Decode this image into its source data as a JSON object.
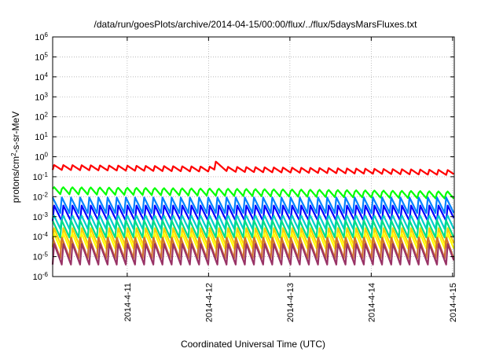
{
  "chart_data": {
    "type": "line",
    "title": "/data/run/goesPlots/archive/2014-04-15/00:00/flux/../flux/5daysMarsFluxes.txt",
    "xlabel": "Coordinated Universal Time (UTC)",
    "ylabel": "protons/cm2-s-sr-MeV",
    "ylabel_base": "protons/cm",
    "ylabel_sup": "2",
    "ylabel_rest": "-s-sr-MeV",
    "yscale": "log",
    "ylim": [
      1e-06,
      1000000.0
    ],
    "xlim": [
      "2014-04-10T02:00",
      "2014-04-15T00:30"
    ],
    "grid": true,
    "y_ticks": [
      {
        "value": 1e-06,
        "base": "10",
        "exp": "-6"
      },
      {
        "value": 1e-05,
        "base": "10",
        "exp": "-5"
      },
      {
        "value": 0.0001,
        "base": "10",
        "exp": "-4"
      },
      {
        "value": 0.001,
        "base": "10",
        "exp": "-3"
      },
      {
        "value": 0.01,
        "base": "10",
        "exp": "-2"
      },
      {
        "value": 0.1,
        "base": "10",
        "exp": "-1"
      },
      {
        "value": 1.0,
        "base": "10",
        "exp": "0"
      },
      {
        "value": 10.0,
        "base": "10",
        "exp": "1"
      },
      {
        "value": 100.0,
        "base": "10",
        "exp": "2"
      },
      {
        "value": 1000.0,
        "base": "10",
        "exp": "3"
      },
      {
        "value": 10000.0,
        "base": "10",
        "exp": "4"
      },
      {
        "value": 100000.0,
        "base": "10",
        "exp": "5"
      },
      {
        "value": 1000000.0,
        "base": "10",
        "exp": "6"
      }
    ],
    "x_ticks": [
      {
        "value": "2014-04-11T00:00",
        "label": "2014-4-11"
      },
      {
        "value": "2014-04-12T00:00",
        "label": "2014-4-12"
      },
      {
        "value": "2014-04-13T00:00",
        "label": "2014-4-13"
      },
      {
        "value": "2014-04-14T00:00",
        "label": "2014-4-14"
      },
      {
        "value": "2014-04-15T00:00",
        "label": "2014-4-15"
      }
    ],
    "series": [
      {
        "color": "#ff0000",
        "period_hours": 2.7,
        "peak": 0.4,
        "trough": 0.22,
        "events": [
          {
            "at": "2014-04-12T02:00",
            "peak": 0.6
          }
        ],
        "trend_end": 0.55
      },
      {
        "color": "#00ff00",
        "period_hours": 2.7,
        "peak": 0.035,
        "trough": 0.012,
        "trend_end": 0.6
      },
      {
        "color": "#0080ff",
        "period_hours": 2.7,
        "peak": 0.01,
        "trough": 0.0015
      },
      {
        "color": "#0000ff",
        "period_hours": 2.7,
        "peak": 0.004,
        "trough": 0.0006
      },
      {
        "color": "#00cccc",
        "period_hours": 2.7,
        "peak": 0.0015,
        "trough": 0.0002
      },
      {
        "color": "#00dd88",
        "period_hours": 2.7,
        "peak": 0.0007,
        "trough": 9e-05
      },
      {
        "color": "#ffd000",
        "period_hours": 2.7,
        "peak": 0.0003,
        "trough": 3e-05
      },
      {
        "color": "#ffff00",
        "period_hours": 2.7,
        "peak": 0.0002,
        "trough": 2e-05
      },
      {
        "color": "#d07030",
        "period_hours": 2.7,
        "peak": 0.0001,
        "trough": 8e-06
      },
      {
        "color": "#993366",
        "period_hours": 2.7,
        "peak": 5e-05,
        "trough": 4e-06
      }
    ]
  }
}
